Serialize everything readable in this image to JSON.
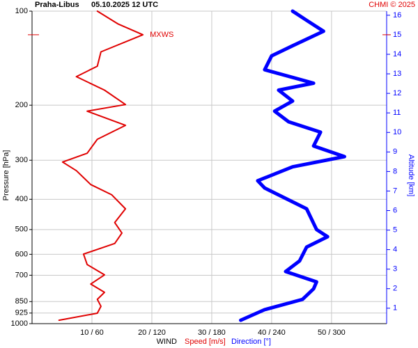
{
  "chart_data": {
    "type": "profile",
    "title": "Praha-Libus",
    "subtitle": "05.10.2025 12 UTC",
    "credit": "CHMI © 2025",
    "y_label": "Pressure [hPa]",
    "y2_label": "Altitude [km]",
    "x_label": "WIND",
    "annotation": "MXWS",
    "y_scale": "log",
    "y_inverted": true,
    "ylim": [
      100,
      1000
    ],
    "yticks": [
      100,
      200,
      300,
      400,
      500,
      600,
      700,
      850,
      925,
      1000
    ],
    "y2lim": [
      0.21,
      16.21
    ],
    "y2ticks": [
      1,
      2,
      3,
      4,
      5,
      6,
      7,
      8,
      9,
      10,
      11,
      12,
      13,
      14,
      15,
      16
    ],
    "xlim": [
      0,
      59.2
    ],
    "x2lim": [
      0,
      355.2
    ],
    "xticks": [
      {
        "value": 10,
        "label": "10 / 60"
      },
      {
        "value": 20,
        "label": "20 / 120"
      },
      {
        "value": 30,
        "label": "30 / 180"
      },
      {
        "value": 40,
        "label": "40 / 240"
      },
      {
        "value": 50,
        "label": "50 / 300"
      }
    ],
    "grid": true,
    "series": [
      {
        "name": "Speed [m/s]",
        "color": "#e00000",
        "axis": "x",
        "width": 2,
        "pressure": [
          975,
          926,
          880,
          836,
          794,
          747,
          698,
          647,
          599,
          554,
          513,
          475,
          429,
          387,
          359,
          324,
          304,
          285,
          257,
          232,
          209,
          199,
          179,
          162,
          150,
          135,
          119,
          110,
          100
        ],
        "values": [
          4.5,
          10.9,
          11.5,
          10.9,
          12.1,
          9.8,
          12.1,
          9.2,
          8.6,
          13.8,
          15,
          13.8,
          15.6,
          13.3,
          9.8,
          7.4,
          5.1,
          9.2,
          10.9,
          15.6,
          9.2,
          15.6,
          12.1,
          7.4,
          10.9,
          11.5,
          18.5,
          14.4,
          10.9
        ]
      },
      {
        "name": "Direction [°]",
        "color": "#0000ff",
        "axis": "x2",
        "width": 5,
        "pressure": [
          975,
          902,
          836,
          774,
          735,
          681,
          630,
          569,
          527,
          500,
          429,
          368,
          349,
          315,
          292,
          270,
          244,
          226,
          209,
          194,
          179,
          170,
          154,
          139,
          129,
          116,
          107,
          100
        ],
        "values": [
          209,
          233,
          271,
          282,
          285,
          254,
          268,
          275,
          296,
          285,
          275,
          233,
          226,
          261,
          313,
          282,
          289,
          257,
          243,
          261,
          247,
          282,
          233,
          240,
          261,
          292,
          275,
          261
        ]
      }
    ]
  }
}
